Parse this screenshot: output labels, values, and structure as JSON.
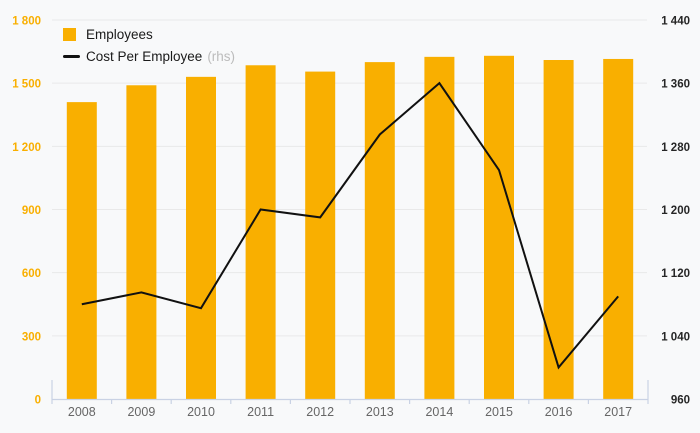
{
  "chart_data": {
    "type": "bar",
    "title": "",
    "categories": [
      "2008",
      "2009",
      "2010",
      "2011",
      "2012",
      "2013",
      "2014",
      "2015",
      "2016",
      "2017"
    ],
    "series": [
      {
        "name": "Employees",
        "type": "bar",
        "axis": "left",
        "color": "#F9AF00",
        "values": [
          1410,
          1490,
          1530,
          1585,
          1555,
          1600,
          1625,
          1630,
          1610,
          1615
        ]
      },
      {
        "name": "Cost Per Employee",
        "type": "line",
        "axis": "right",
        "color": "#111111",
        "values": [
          1080,
          1095,
          1075,
          1200,
          1190,
          1295,
          1360,
          1250,
          1000,
          1090
        ]
      }
    ],
    "left_axis": {
      "min": 0,
      "max": 1800,
      "tick_values": [
        1800,
        1500,
        1200,
        900,
        600,
        300,
        0
      ],
      "tick_labels": [
        "1 800",
        "1 500",
        "1 200",
        "900",
        "600",
        "300",
        "0"
      ]
    },
    "right_axis": {
      "min": 960,
      "max": 1440,
      "tick_values": [
        1440,
        1360,
        1280,
        1200,
        1120,
        1040,
        960
      ],
      "tick_labels": [
        "1 440",
        "1 360",
        "1 280",
        "1 200",
        "1 120",
        "1 040",
        "960"
      ]
    },
    "legend": [
      {
        "label": "Employees",
        "marker": "square",
        "color": "#F9AF00"
      },
      {
        "label": "Cost Per Employee",
        "note": "(rhs)",
        "marker": "line",
        "color": "#111111"
      }
    ],
    "grid": true,
    "legend_position": "top-left"
  },
  "colors": {
    "background": "#f8f9fa",
    "bar": "#F9AF00",
    "line": "#111111",
    "gridline": "#e9e9e9",
    "axis": "#c9d2e4",
    "left_axis_text": "#F9AF00",
    "right_axis_text": "#262626",
    "x_axis_text": "#666666",
    "legend_text": "#1a1a1a",
    "rhs_note": "#bcbcbc"
  }
}
